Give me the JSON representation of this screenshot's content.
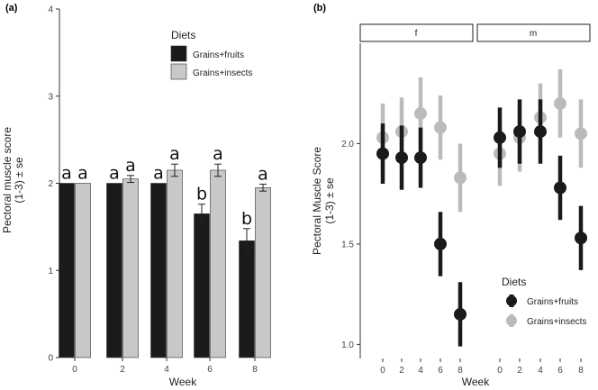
{
  "figure": {
    "panel_a_tag": "(a)",
    "panel_b_tag": "(b)"
  },
  "chart_data": [
    {
      "type": "bar",
      "panel": "(a)",
      "categories": [
        "0",
        "2",
        "4",
        "6",
        "8"
      ],
      "xlabel": "Week",
      "ylabel_line1": "Pectoral muscle score",
      "ylabel_line2": "(1-3) ± se",
      "ylim": [
        0,
        4
      ],
      "yticks": [
        "0",
        "1",
        "2",
        "3",
        "4"
      ],
      "grid": false,
      "legend": {
        "title": "Diets",
        "placement": "top-right"
      },
      "series": [
        {
          "name": "Grains+fruits",
          "color": "#1a1a1a",
          "values": [
            2.0,
            2.0,
            2.0,
            1.65,
            1.34
          ],
          "se": [
            0,
            0,
            0,
            0.11,
            0.14
          ],
          "letters": [
            "a",
            "a",
            "a",
            "b",
            "b"
          ]
        },
        {
          "name": "Grains+insects",
          "color": "#c8c8c8",
          "values": [
            2.0,
            2.05,
            2.15,
            2.15,
            1.95
          ],
          "se": [
            0,
            0.04,
            0.07,
            0.07,
            0.04
          ],
          "letters": [
            "a",
            "a",
            "a",
            "a",
            "a"
          ]
        }
      ]
    },
    {
      "type": "scatter",
      "panel": "(b)",
      "facets": [
        "f",
        "m"
      ],
      "categories": [
        "0",
        "2",
        "4",
        "6",
        "8"
      ],
      "xlabel": "Week",
      "ylabel_line1": "Pectoral Muscle Score",
      "ylabel_line2": "(1-3) ± se",
      "ylim": [
        0.93,
        2.5
      ],
      "yticks": [
        "1.0",
        "1.5",
        "2.0"
      ],
      "ytick_values": [
        1.0,
        1.5,
        2.0
      ],
      "grid": false,
      "legend": {
        "title": "Diets",
        "placement": "bottom-right"
      },
      "series": [
        {
          "name": "Grains+fruits",
          "color": "#1a1a1a",
          "f": {
            "values": [
              1.95,
              1.93,
              1.93,
              1.5,
              1.15
            ],
            "se": [
              0.15,
              0.16,
              0.15,
              0.16,
              0.16
            ]
          },
          "m": {
            "values": [
              2.03,
              2.06,
              2.06,
              1.78,
              1.53
            ],
            "se": [
              0.15,
              0.16,
              0.16,
              0.16,
              0.16
            ]
          }
        },
        {
          "name": "Grains+insects",
          "color": "#bbbbbb",
          "f": {
            "values": [
              2.03,
              2.06,
              2.15,
              2.08,
              1.83
            ],
            "se": [
              0.17,
              0.17,
              0.18,
              0.16,
              0.17
            ]
          },
          "m": {
            "values": [
              1.95,
              2.03,
              2.13,
              2.2,
              2.05
            ],
            "se": [
              0.16,
              0.17,
              0.17,
              0.17,
              0.17
            ]
          }
        }
      ]
    }
  ]
}
